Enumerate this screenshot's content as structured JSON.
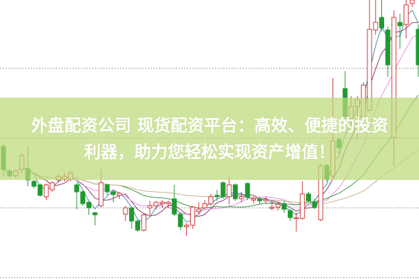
{
  "banner": {
    "line1": "外盘配资公司 现货配资平台：高效、便捷的投资",
    "line2": "利器，助力您轻松实现资产增值！"
  },
  "chart_data": {
    "type": "candlestick",
    "gridlines": "dotted horizontal",
    "colors": {
      "up": "#d0343a",
      "down": "#1f9a2f",
      "ma": [
        "#3d8fb0",
        "#8b3a6d",
        "#e68ee0",
        "#3d9a45",
        "#c8b48a"
      ],
      "banner": "#bcda78"
    },
    "candles": [
      [
        190,
        193,
        147,
        157
      ],
      [
        155,
        158,
        146,
        148
      ],
      [
        148,
        157,
        145,
        155
      ],
      [
        157,
        180,
        152,
        177
      ],
      [
        158,
        190,
        133,
        142
      ],
      [
        140,
        142,
        130,
        133
      ],
      [
        135,
        137,
        118,
        120
      ],
      [
        118,
        137,
        113,
        135
      ],
      [
        128,
        140,
        125,
        138
      ],
      [
        142,
        150,
        138,
        147
      ],
      [
        143,
        152,
        140,
        147
      ],
      [
        143,
        155,
        140,
        152
      ],
      [
        135,
        138,
        100,
        125
      ],
      [
        125,
        127,
        105,
        108
      ],
      [
        110,
        112,
        92,
        102
      ],
      [
        95,
        96,
        77,
        92
      ],
      [
        105,
        157,
        103,
        138
      ],
      [
        135,
        137,
        120,
        125
      ],
      [
        125,
        128,
        110,
        121
      ],
      [
        120,
        125,
        115,
        123
      ],
      [
        93,
        105,
        83,
        102
      ],
      [
        102,
        104,
        72,
        83
      ],
      [
        83,
        85,
        68,
        70
      ],
      [
        70,
        94,
        68,
        92
      ],
      [
        102,
        112,
        92,
        105
      ],
      [
        105,
        112,
        100,
        110
      ],
      [
        108,
        113,
        102,
        110
      ],
      [
        108,
        112,
        102,
        110
      ],
      [
        115,
        135,
        90,
        93
      ],
      [
        93,
        95,
        70,
        75
      ],
      [
        75,
        80,
        62,
        77
      ],
      [
        77,
        105,
        72,
        103
      ],
      [
        97,
        110,
        92,
        100
      ],
      [
        102,
        113,
        100,
        108
      ],
      [
        108,
        122,
        105,
        118
      ],
      [
        120,
        128,
        112,
        118
      ],
      [
        138,
        140,
        115,
        118
      ],
      [
        118,
        147,
        107,
        135
      ],
      [
        135,
        137,
        112,
        115
      ],
      [
        115,
        125,
        110,
        118
      ],
      [
        137,
        138,
        113,
        117
      ],
      [
        113,
        118,
        108,
        115
      ],
      [
        115,
        118,
        108,
        112
      ],
      [
        112,
        118,
        108,
        114
      ],
      [
        102,
        112,
        98,
        103
      ],
      [
        103,
        110,
        98,
        107
      ],
      [
        108,
        112,
        95,
        100
      ],
      [
        98,
        100,
        83,
        88
      ],
      [
        87,
        95,
        68,
        88
      ],
      [
        87,
        140,
        85,
        122
      ],
      [
        122,
        125,
        110,
        112
      ],
      [
        110,
        115,
        100,
        103
      ],
      [
        85,
        165,
        83,
        162
      ],
      [
        163,
        165,
        140,
        143
      ],
      [
        148,
        288,
        145,
        198
      ],
      [
        200,
        203,
        180,
        188
      ],
      [
        273,
        298,
        213,
        233
      ],
      [
        230,
        262,
        220,
        247
      ],
      [
        247,
        262,
        200,
        257
      ],
      [
        232,
        282,
        228,
        278
      ],
      [
        242,
        400,
        240,
        358
      ],
      [
        357,
        400,
        350,
        368
      ],
      [
        375,
        400,
        355,
        360
      ],
      [
        357,
        362,
        290,
        307
      ],
      [
        203,
        385,
        163,
        375
      ],
      [
        368,
        380,
        330,
        363
      ],
      [
        365,
        400,
        345,
        393
      ],
      [
        395,
        400,
        390,
        400
      ],
      [
        358,
        365,
        290,
        307
      ]
    ]
  }
}
